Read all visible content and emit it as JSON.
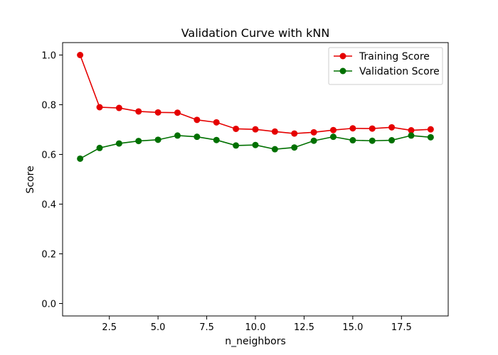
{
  "chart_data": {
    "type": "line",
    "title": "Validation Curve with kNN",
    "xlabel": "n_neighbors",
    "ylabel": "Score",
    "xlim": [
      0.1,
      19.9
    ],
    "ylim": [
      -0.05,
      1.05
    ],
    "xticks": [
      2.5,
      5.0,
      7.5,
      10.0,
      12.5,
      15.0,
      17.5
    ],
    "xtick_labels": [
      "2.5",
      "5.0",
      "7.5",
      "10.0",
      "12.5",
      "15.0",
      "17.5"
    ],
    "yticks": [
      0.0,
      0.2,
      0.4,
      0.6,
      0.8,
      1.0
    ],
    "ytick_labels": [
      "0.0",
      "0.2",
      "0.4",
      "0.6",
      "0.8",
      "1.0"
    ],
    "grid": false,
    "legend_position": "top-right",
    "x": [
      1,
      2,
      3,
      4,
      5,
      6,
      7,
      8,
      9,
      10,
      11,
      12,
      13,
      14,
      15,
      16,
      17,
      18,
      19
    ],
    "series": [
      {
        "name": "Training Score",
        "color": "#e50000",
        "marker": "circle",
        "values": [
          1.0,
          0.79,
          0.787,
          0.773,
          0.769,
          0.768,
          0.739,
          0.729,
          0.703,
          0.701,
          0.692,
          0.684,
          0.689,
          0.698,
          0.705,
          0.704,
          0.709,
          0.697,
          0.701
        ]
      },
      {
        "name": "Validation Score",
        "color": "#007000",
        "marker": "circle",
        "values": [
          0.583,
          0.626,
          0.644,
          0.654,
          0.659,
          0.676,
          0.671,
          0.658,
          0.636,
          0.638,
          0.621,
          0.628,
          0.655,
          0.671,
          0.657,
          0.655,
          0.657,
          0.676,
          0.669
        ]
      }
    ]
  }
}
